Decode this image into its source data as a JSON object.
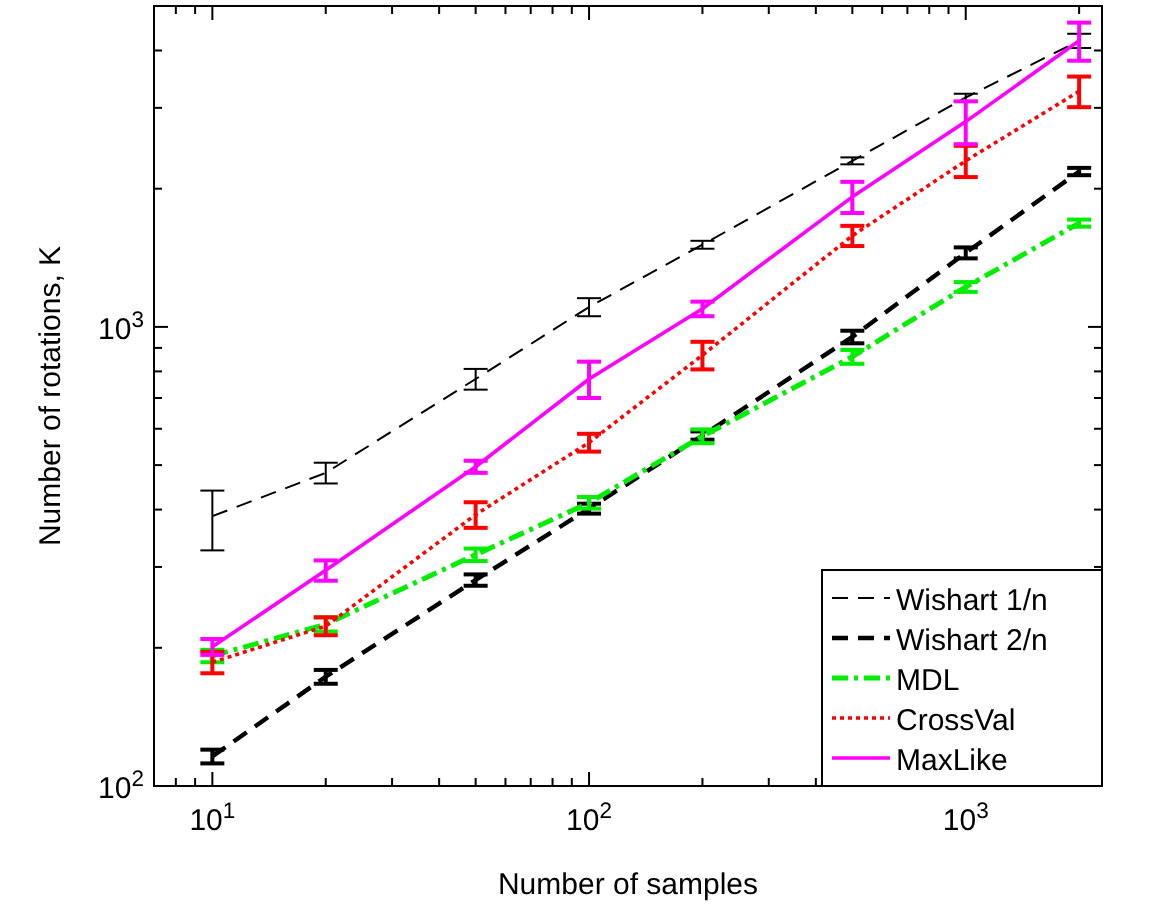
{
  "chart_data": {
    "type": "line",
    "xlabel": "Number of samples",
    "ylabel": "Number of rotations, K",
    "log": "xy",
    "grid": false,
    "legend": "bottom right",
    "marker": "none",
    "x": [
      10,
      20,
      50,
      100,
      200,
      500,
      1000,
      2000
    ],
    "xlim": [
      7,
      2300
    ],
    "ylim": [
      100,
      5000
    ],
    "xticks": [
      {
        "value": 8,
        "label": null
      },
      {
        "value": 9,
        "label": null
      },
      {
        "value": 10,
        "label": "10$^{1}$"
      },
      {
        "value": 20,
        "label": null
      },
      {
        "value": 30,
        "label": null
      },
      {
        "value": 40,
        "label": null
      },
      {
        "value": 50,
        "label": null
      },
      {
        "value": 60,
        "label": null
      },
      {
        "value": 70,
        "label": null
      },
      {
        "value": 80,
        "label": null
      },
      {
        "value": 90,
        "label": null
      },
      {
        "value": 100,
        "label": "10$^{2}$"
      },
      {
        "value": 200,
        "label": null
      },
      {
        "value": 300,
        "label": null
      },
      {
        "value": 400,
        "label": null
      },
      {
        "value": 500,
        "label": null
      },
      {
        "value": 600,
        "label": null
      },
      {
        "value": 700,
        "label": null
      },
      {
        "value": 800,
        "label": null
      },
      {
        "value": 900,
        "label": null
      },
      {
        "value": 1000,
        "label": "10$^{3}$"
      },
      {
        "value": 2000,
        "label": null
      }
    ],
    "yticks": [
      {
        "value": 100,
        "label": "10$^{2}$"
      },
      {
        "value": 200,
        "label": null
      },
      {
        "value": 300,
        "label": null
      },
      {
        "value": 400,
        "label": null
      },
      {
        "value": 500,
        "label": null
      },
      {
        "value": 600,
        "label": null
      },
      {
        "value": 700,
        "label": null
      },
      {
        "value": 800,
        "label": null
      },
      {
        "value": 900,
        "label": null
      },
      {
        "value": 1000,
        "label": "10$^{3}$"
      },
      {
        "value": 2000,
        "label": null
      },
      {
        "value": 3000,
        "label": null
      },
      {
        "value": 4000,
        "label": null
      }
    ],
    "series": [
      {
        "name": "Wishart 1/n",
        "color": "#000000",
        "line_style": "dashed",
        "values": [
          387,
          481,
          770,
          1105,
          1510,
          2300,
          3160,
          4200
        ],
        "errors": [
          [
            326,
            440
          ],
          25,
          40,
          50,
          30,
          40,
          60,
          150
        ]
      },
      {
        "name": "Wishart 2/n",
        "color": "#000000",
        "line_style": "dashed",
        "values": [
          116,
          173,
          281,
          402,
          580,
          951,
          1450,
          2180
        ],
        "errors": [
          4,
          6,
          8,
          10,
          12,
          30,
          40,
          40
        ]
      },
      {
        "name": "MDL",
        "color": "#00ee00",
        "line_style": "dashdot",
        "values": [
          192,
          225,
          319,
          414,
          578,
          861,
          1222,
          1683
        ],
        "errors": [
          6,
          8,
          10,
          12,
          20,
          30,
          30,
          30
        ]
      },
      {
        "name": "CrossVal",
        "color": "#ff0000",
        "line_style": "dotted",
        "values": [
          186,
          223,
          390,
          560,
          868,
          1580,
          2300,
          3260
        ],
        "errors": [
          10,
          10,
          25,
          25,
          60,
          80,
          180,
          250
        ]
      },
      {
        "name": "MaxLike",
        "color": "#ff00ff",
        "line_style": "solid",
        "values": [
          201,
          295,
          496,
          770,
          1095,
          1920,
          2800,
          4200
        ],
        "errors": [
          8,
          15,
          15,
          70,
          40,
          150,
          300,
          400
        ]
      }
    ]
  }
}
